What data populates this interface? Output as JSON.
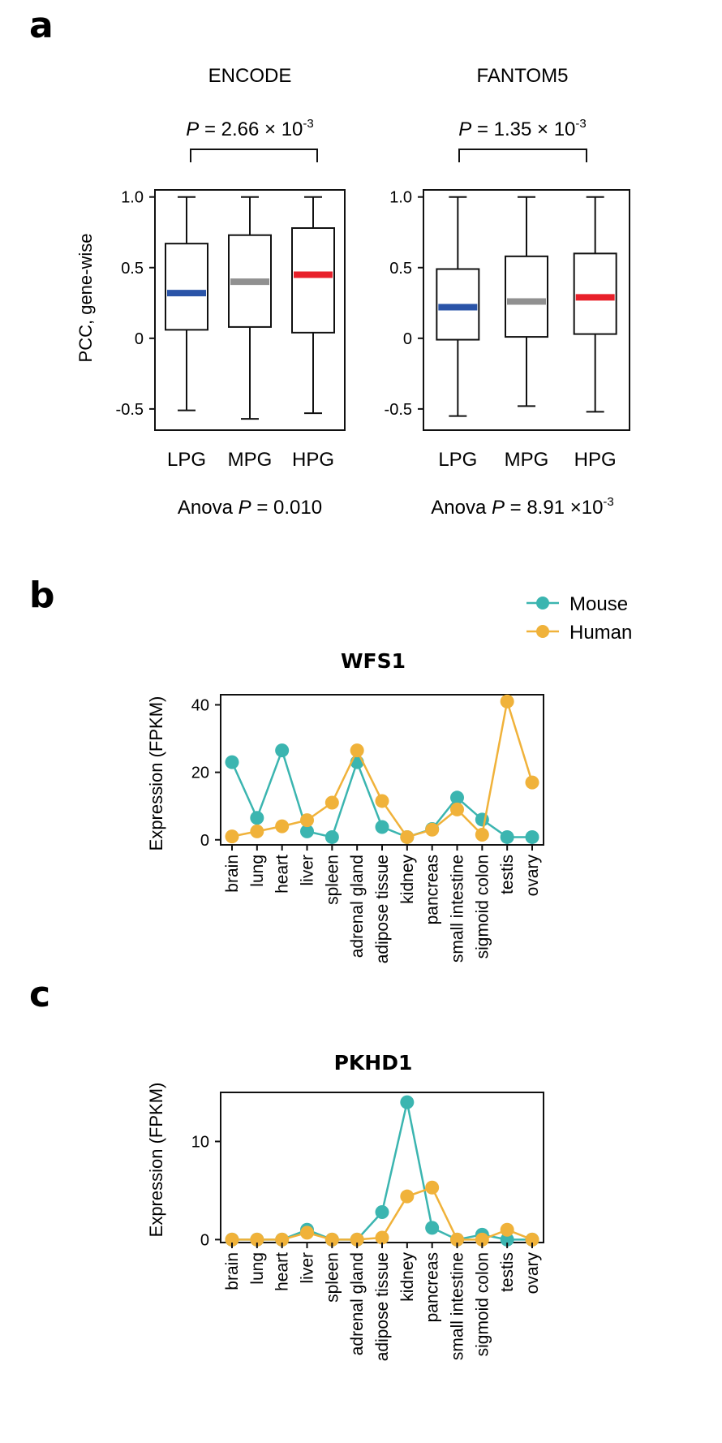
{
  "panels": {
    "a": "a",
    "b": "b",
    "c": "c"
  },
  "colors": {
    "lpg": "#2a54a8",
    "mpg": "#909090",
    "hpg": "#e8202a",
    "mouse": "#3bb5b0",
    "human": "#f0b23a"
  },
  "chart_data": [
    {
      "type": "box",
      "title": "ENCODE",
      "ylabel": "PCC, gene-wise",
      "categories": [
        "LPG",
        "MPG",
        "HPG"
      ],
      "ylim": [
        -0.65,
        1.05
      ],
      "yticks": [
        "1.0",
        "0.5",
        "0",
        "-0.5"
      ],
      "ytick_values": [
        1.0,
        0.5,
        0,
        -0.5
      ],
      "boxes": [
        {
          "min": -0.51,
          "q1": 0.06,
          "median": 0.32,
          "q3": 0.67,
          "max": 1.0
        },
        {
          "min": -0.57,
          "q1": 0.08,
          "median": 0.4,
          "q3": 0.73,
          "max": 1.0
        },
        {
          "min": -0.53,
          "q1": 0.04,
          "median": 0.45,
          "q3": 0.78,
          "max": 1.0
        }
      ],
      "comparison": {
        "prefix": "P",
        "text": " = 2.66 × 10",
        "exp": "-3"
      },
      "anova": {
        "prefix": "Anova ",
        "p": "P",
        "text": " = 0.010",
        "exp": ""
      }
    },
    {
      "type": "box",
      "title": "FANTOM5",
      "ylabel": "",
      "categories": [
        "LPG",
        "MPG",
        "HPG"
      ],
      "ylim": [
        -0.65,
        1.05
      ],
      "yticks": [
        "1.0",
        "0.5",
        "0",
        "-0.5"
      ],
      "ytick_values": [
        1.0,
        0.5,
        0,
        -0.5
      ],
      "boxes": [
        {
          "min": -0.55,
          "q1": -0.01,
          "median": 0.22,
          "q3": 0.49,
          "max": 1.0
        },
        {
          "min": -0.48,
          "q1": 0.01,
          "median": 0.26,
          "q3": 0.58,
          "max": 1.0
        },
        {
          "min": -0.52,
          "q1": 0.03,
          "median": 0.29,
          "q3": 0.6,
          "max": 1.0
        }
      ],
      "comparison": {
        "prefix": "P",
        "text": " = 1.35 × 10",
        "exp": "-3"
      },
      "anova": {
        "prefix": "Anova ",
        "p": "P",
        "text": " = 8.91 ×10",
        "exp": "-3"
      }
    },
    {
      "type": "line",
      "title": "WFS1",
      "ylabel": "Expression (FPKM)",
      "categories": [
        "brain",
        "lung",
        "heart",
        "liver",
        "spleen",
        "adrenal gland",
        "adipose tissue",
        "kidney",
        "pancreas",
        "small intestine",
        "sigmoid colon",
        "testis",
        "ovary"
      ],
      "ylim": [
        -1.5,
        43
      ],
      "yticks": [
        "40",
        "20",
        "0"
      ],
      "ytick_values": [
        40,
        20,
        0
      ],
      "legend": [
        "Mouse",
        "Human"
      ],
      "series": [
        {
          "name": "Mouse",
          "values": [
            23,
            6.5,
            26.5,
            2.5,
            0.8,
            23,
            3.8,
            0.8,
            3.2,
            12.5,
            6,
            0.8,
            0.8
          ]
        },
        {
          "name": "Human",
          "values": [
            1.0,
            2.5,
            4.0,
            5.8,
            11,
            26.5,
            11.5,
            0.8,
            3.0,
            9.0,
            1.5,
            41,
            17
          ]
        }
      ]
    },
    {
      "type": "line",
      "title": "PKHD1",
      "ylabel": "Expression (FPKM)",
      "categories": [
        "brain",
        "lung",
        "heart",
        "liver",
        "spleen",
        "adrenal gland",
        "adipose tissue",
        "kidney",
        "pancreas",
        "small intestine",
        "sigmoid colon",
        "testis",
        "ovary"
      ],
      "ylim": [
        -0.3,
        15
      ],
      "yticks": [
        "10",
        "0"
      ],
      "ytick_values": [
        10,
        0
      ],
      "series": [
        {
          "name": "Mouse",
          "values": [
            0,
            0,
            0,
            1.0,
            0,
            0,
            2.8,
            14,
            1.2,
            0,
            0.5,
            0,
            0
          ]
        },
        {
          "name": "Human",
          "values": [
            0,
            0,
            0,
            0.7,
            0,
            0,
            0.2,
            4.4,
            5.3,
            0,
            0,
            1.0,
            0
          ]
        }
      ]
    }
  ]
}
